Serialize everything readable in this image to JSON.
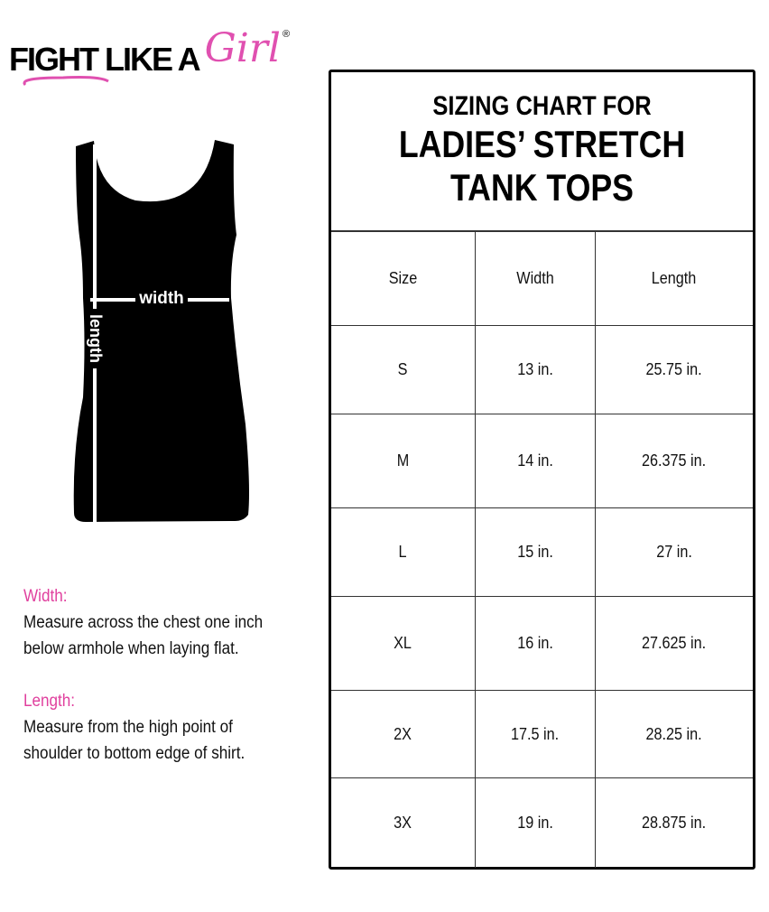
{
  "logo": {
    "text": "FIGHT LIKE A",
    "script": "Girl",
    "mark": "®",
    "accent": "#e050b0"
  },
  "diagram": {
    "width_label": "width",
    "length_label": "length"
  },
  "notes": [
    {
      "heading": "Width:",
      "lines": [
        "Measure across the chest one inch",
        "below armhole when laying flat."
      ]
    },
    {
      "heading": "Length:",
      "lines": [
        "Measure from the high point of",
        "shoulder to bottom edge of shirt."
      ]
    }
  ],
  "chart": {
    "title_line1": "SIZING CHART FOR",
    "title_line2": "LADIES’ STRETCH",
    "title_line3": "TANK TOPS",
    "headers": [
      "Size",
      "Width",
      "Length"
    ],
    "rows": [
      [
        "S",
        "13 in.",
        "25.75 in."
      ],
      [
        "M",
        "14 in.",
        "26.375 in."
      ],
      [
        "L",
        "15 in.",
        "27 in."
      ],
      [
        "XL",
        "16 in.",
        "27.625 in."
      ],
      [
        "2X",
        "17.5 in.",
        "28.25 in."
      ],
      [
        "3X",
        "19 in.",
        "28.875 in."
      ]
    ]
  }
}
